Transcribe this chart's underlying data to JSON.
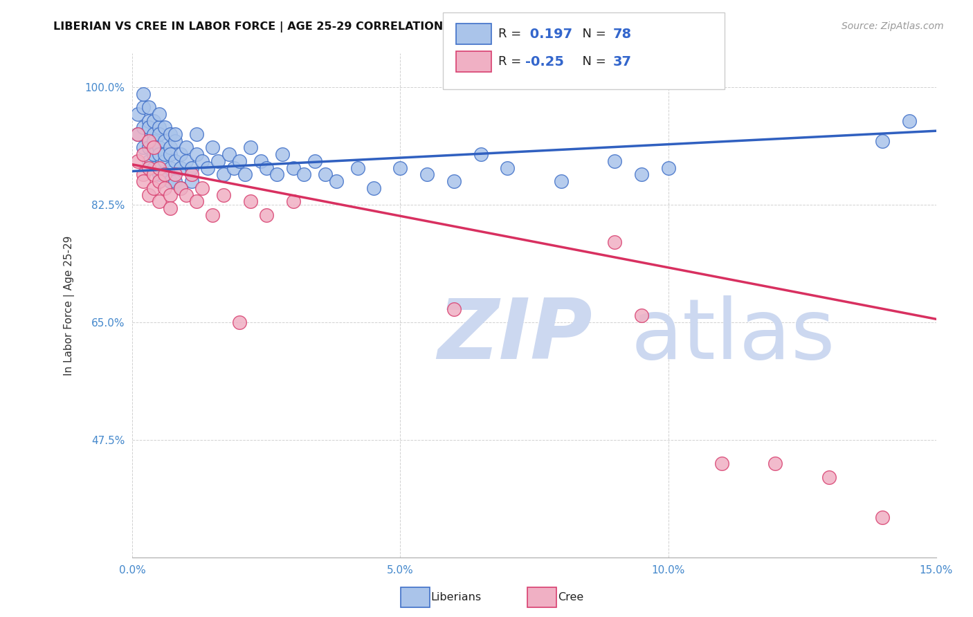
{
  "title": "LIBERIAN VS CREE IN LABOR FORCE | AGE 25-29 CORRELATION CHART",
  "source": "Source: ZipAtlas.com",
  "ylabel": "In Labor Force | Age 25-29",
  "xlim": [
    0.0,
    0.15
  ],
  "ylim": [
    0.3,
    1.05
  ],
  "yticks": [
    0.475,
    0.65,
    0.825,
    1.0
  ],
  "ytick_labels": [
    "47.5%",
    "65.0%",
    "82.5%",
    "100.0%"
  ],
  "xticks": [
    0.0,
    0.05,
    0.1,
    0.15
  ],
  "xtick_labels": [
    "0.0%",
    "5.0%",
    "10.0%",
    "15.0%"
  ],
  "liberian_R": 0.197,
  "liberian_N": 78,
  "cree_R": -0.25,
  "cree_N": 37,
  "liberian_color": "#aac4ea",
  "liberian_edge_color": "#4070c8",
  "cree_color": "#f0b0c4",
  "cree_edge_color": "#d84070",
  "trend_lib_color": "#3060c0",
  "trend_cree_color": "#d83060",
  "watermark_zip": "ZIP",
  "watermark_atlas": "atlas",
  "watermark_color": "#ccd8f0",
  "liberian_x": [
    0.001,
    0.001,
    0.002,
    0.002,
    0.002,
    0.002,
    0.003,
    0.003,
    0.003,
    0.003,
    0.003,
    0.003,
    0.004,
    0.004,
    0.004,
    0.004,
    0.004,
    0.005,
    0.005,
    0.005,
    0.005,
    0.005,
    0.005,
    0.006,
    0.006,
    0.006,
    0.006,
    0.006,
    0.007,
    0.007,
    0.007,
    0.007,
    0.007,
    0.008,
    0.008,
    0.008,
    0.008,
    0.009,
    0.009,
    0.009,
    0.01,
    0.01,
    0.011,
    0.011,
    0.012,
    0.012,
    0.013,
    0.014,
    0.015,
    0.016,
    0.017,
    0.018,
    0.019,
    0.02,
    0.021,
    0.022,
    0.024,
    0.025,
    0.027,
    0.028,
    0.03,
    0.032,
    0.034,
    0.036,
    0.038,
    0.042,
    0.045,
    0.05,
    0.055,
    0.06,
    0.065,
    0.07,
    0.08,
    0.09,
    0.095,
    0.1,
    0.14,
    0.145
  ],
  "liberian_y": [
    0.93,
    0.96,
    0.91,
    0.94,
    0.97,
    0.99,
    0.92,
    0.95,
    0.97,
    0.89,
    0.91,
    0.94,
    0.9,
    0.93,
    0.95,
    0.88,
    0.92,
    0.91,
    0.94,
    0.87,
    0.9,
    0.93,
    0.96,
    0.89,
    0.92,
    0.94,
    0.87,
    0.9,
    0.91,
    0.88,
    0.93,
    0.86,
    0.9,
    0.92,
    0.89,
    0.86,
    0.93,
    0.9,
    0.88,
    0.85,
    0.91,
    0.89,
    0.88,
    0.86,
    0.9,
    0.93,
    0.89,
    0.88,
    0.91,
    0.89,
    0.87,
    0.9,
    0.88,
    0.89,
    0.87,
    0.91,
    0.89,
    0.88,
    0.87,
    0.9,
    0.88,
    0.87,
    0.89,
    0.87,
    0.86,
    0.88,
    0.85,
    0.88,
    0.87,
    0.86,
    0.9,
    0.88,
    0.86,
    0.89,
    0.87,
    0.88,
    0.92,
    0.95
  ],
  "cree_x": [
    0.001,
    0.001,
    0.002,
    0.002,
    0.002,
    0.003,
    0.003,
    0.003,
    0.004,
    0.004,
    0.004,
    0.005,
    0.005,
    0.005,
    0.006,
    0.006,
    0.007,
    0.007,
    0.008,
    0.009,
    0.01,
    0.011,
    0.012,
    0.013,
    0.015,
    0.017,
    0.02,
    0.022,
    0.025,
    0.03,
    0.06,
    0.09,
    0.095,
    0.11,
    0.12,
    0.13,
    0.14
  ],
  "cree_y": [
    0.89,
    0.93,
    0.87,
    0.9,
    0.86,
    0.88,
    0.92,
    0.84,
    0.87,
    0.91,
    0.85,
    0.88,
    0.86,
    0.83,
    0.87,
    0.85,
    0.84,
    0.82,
    0.87,
    0.85,
    0.84,
    0.87,
    0.83,
    0.85,
    0.81,
    0.84,
    0.65,
    0.83,
    0.81,
    0.83,
    0.67,
    0.77,
    0.66,
    0.44,
    0.44,
    0.42,
    0.36
  ]
}
